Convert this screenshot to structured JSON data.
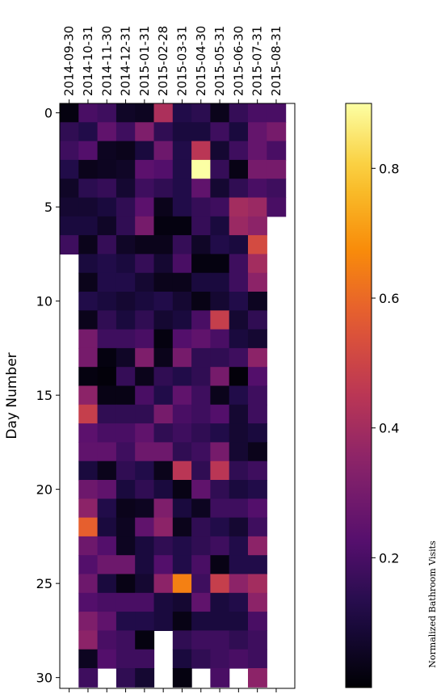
{
  "chart_data": {
    "type": "heatmap",
    "title": "",
    "xlabel": "",
    "ylabel": "Day Number",
    "colorbar_label": "Normalized Bathroom Visits",
    "colormap": "inferno",
    "vmin": 0.0,
    "vmax": 0.9,
    "months": [
      "2014-09-30",
      "2014-10-31",
      "2014-11-30",
      "2014-12-31",
      "2015-01-31",
      "2015-02-28",
      "2015-03-31",
      "2015-04-30",
      "2015-05-31",
      "2015-06-30",
      "2015-07-31",
      "2015-08-31"
    ],
    "y_ticks": [
      0,
      5,
      10,
      15,
      20,
      25,
      30
    ],
    "colorbar_ticks": [
      0.2,
      0.4,
      0.6,
      0.8
    ],
    "x_ticks_labeled": [
      "2014-09-30",
      "2014-10-31",
      "2014-11-30",
      "2014-12-31",
      "2015-01-31",
      "2015-02-28",
      "2015-03-31",
      "2015-04-30",
      "2015-05-31",
      "2015-06-30",
      "2015-07-31",
      "2015-08-31"
    ],
    "values": [
      [
        0.02,
        0.2,
        0.18,
        0.06,
        0.05,
        0.42,
        0.12,
        0.14,
        0.04,
        0.16,
        0.2,
        0.2
      ],
      [
        0.15,
        0.12,
        0.25,
        0.18,
        0.32,
        0.15,
        0.1,
        0.1,
        0.18,
        0.1,
        0.26,
        0.3
      ],
      [
        0.18,
        0.22,
        0.05,
        0.04,
        0.1,
        0.28,
        0.12,
        0.45,
        0.08,
        0.18,
        0.26,
        0.2
      ],
      [
        0.12,
        0.04,
        0.05,
        0.06,
        0.24,
        0.22,
        0.12,
        0.9,
        0.16,
        0.03,
        0.3,
        0.3
      ],
      [
        0.06,
        0.14,
        0.16,
        0.08,
        0.18,
        0.15,
        0.12,
        0.25,
        0.08,
        0.15,
        0.2,
        0.18
      ],
      [
        0.08,
        0.08,
        0.1,
        0.15,
        0.24,
        0.04,
        0.12,
        0.16,
        0.18,
        0.4,
        0.38,
        0.2
      ],
      [
        0.1,
        0.1,
        0.06,
        0.15,
        0.3,
        0.02,
        0.02,
        0.16,
        0.1,
        0.38,
        0.35,
        null
      ],
      [
        0.18,
        0.04,
        0.16,
        0.06,
        0.04,
        0.04,
        0.16,
        0.06,
        0.12,
        0.1,
        0.52,
        null
      ],
      [
        null,
        0.1,
        0.12,
        0.1,
        0.16,
        0.08,
        0.2,
        0.02,
        0.02,
        0.18,
        0.4,
        null
      ],
      [
        null,
        0.04,
        0.12,
        0.12,
        0.08,
        0.04,
        0.04,
        0.1,
        0.1,
        0.18,
        0.35,
        null
      ],
      [
        null,
        0.12,
        0.1,
        0.08,
        0.1,
        0.12,
        0.08,
        0.03,
        0.08,
        0.12,
        0.05,
        null
      ],
      [
        null,
        0.04,
        0.15,
        0.1,
        0.15,
        0.08,
        0.1,
        0.2,
        0.48,
        0.08,
        0.15,
        null
      ],
      [
        null,
        0.3,
        0.18,
        0.18,
        0.2,
        0.02,
        0.22,
        0.25,
        0.2,
        0.1,
        0.08,
        null
      ],
      [
        null,
        0.3,
        0.02,
        0.06,
        0.32,
        0.04,
        0.3,
        0.15,
        0.15,
        0.18,
        0.35,
        null
      ],
      [
        null,
        0.02,
        0.01,
        0.16,
        0.04,
        0.15,
        0.12,
        0.15,
        0.3,
        0.01,
        0.22,
        null
      ],
      [
        null,
        0.35,
        0.03,
        0.03,
        0.2,
        0.12,
        0.25,
        0.18,
        0.04,
        0.12,
        0.18,
        null
      ],
      [
        null,
        0.48,
        0.15,
        0.15,
        0.15,
        0.3,
        0.2,
        0.18,
        0.22,
        0.08,
        0.18,
        null
      ],
      [
        null,
        0.24,
        0.2,
        0.2,
        0.25,
        0.15,
        0.18,
        0.15,
        0.12,
        0.08,
        0.1,
        null
      ],
      [
        null,
        0.25,
        0.25,
        0.18,
        0.28,
        0.28,
        0.15,
        0.18,
        0.3,
        0.08,
        0.04,
        null
      ],
      [
        null,
        0.1,
        0.04,
        0.15,
        0.12,
        0.04,
        0.45,
        0.15,
        0.45,
        0.15,
        0.18,
        null
      ],
      [
        null,
        0.28,
        0.25,
        0.1,
        0.15,
        0.1,
        0.03,
        0.25,
        0.15,
        0.1,
        0.12,
        null
      ],
      [
        null,
        0.35,
        0.12,
        0.04,
        0.05,
        0.32,
        0.1,
        0.05,
        0.18,
        0.18,
        0.22,
        null
      ],
      [
        null,
        0.58,
        0.1,
        0.05,
        0.25,
        0.35,
        0.04,
        0.15,
        0.12,
        0.08,
        0.18,
        null
      ],
      [
        null,
        0.28,
        0.22,
        0.05,
        0.1,
        0.15,
        0.12,
        0.15,
        0.18,
        0.12,
        0.35,
        null
      ],
      [
        null,
        0.22,
        0.28,
        0.28,
        0.1,
        0.22,
        0.12,
        0.2,
        0.03,
        0.12,
        0.12,
        null
      ],
      [
        null,
        0.28,
        0.1,
        0.03,
        0.08,
        0.35,
        0.65,
        0.18,
        0.48,
        0.35,
        0.4,
        null
      ],
      [
        null,
        0.22,
        0.2,
        0.2,
        0.2,
        0.1,
        0.08,
        0.25,
        0.1,
        0.12,
        0.35,
        null
      ],
      [
        null,
        0.32,
        0.25,
        0.12,
        0.12,
        0.1,
        0.03,
        0.1,
        0.1,
        0.1,
        0.2,
        null
      ],
      [
        null,
        0.35,
        0.2,
        0.18,
        0.02,
        null,
        0.15,
        0.18,
        0.18,
        0.15,
        0.18,
        null
      ],
      [
        null,
        0.05,
        0.22,
        0.18,
        0.18,
        null,
        0.1,
        0.15,
        0.18,
        0.2,
        0.18,
        null
      ],
      [
        null,
        0.18,
        null,
        0.15,
        0.08,
        null,
        0.02,
        null,
        0.2,
        null,
        0.35,
        null
      ]
    ]
  }
}
